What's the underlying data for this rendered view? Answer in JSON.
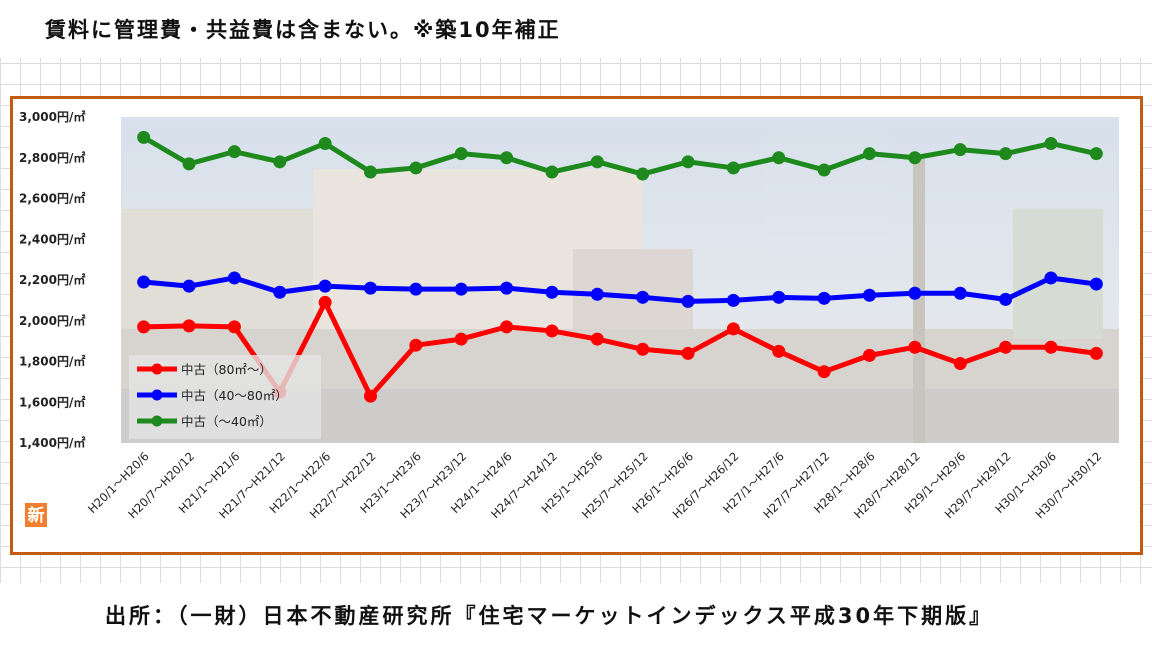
{
  "header_note": "賃料に管理費・共益費は含まない。※築10年補正",
  "source_note": "出所：（一財）日本不動産研究所『住宅マーケットインデックス平成30年下期版』",
  "badge": "新",
  "colors": {
    "frame": "#c55a11",
    "series_80": "#ff0000",
    "series_40_80": "#0000ff",
    "series_40": "#1e8a1e",
    "badge": "#f08030"
  },
  "chart_data": {
    "type": "line",
    "title": "",
    "xlabel": "",
    "ylabel": "",
    "ylim": [
      1400,
      3000
    ],
    "yticks": [
      1400,
      1600,
      1800,
      2000,
      2200,
      2400,
      2600,
      2800,
      3000
    ],
    "ytick_labels": [
      "1,400円/㎡",
      "1,600円/㎡",
      "1,800円/㎡",
      "2,000円/㎡",
      "2,200円/㎡",
      "2,400円/㎡",
      "2,600円/㎡",
      "2,800円/㎡",
      "3,000円/㎡"
    ],
    "categories": [
      "H20/1～H20/6",
      "H20/7～H20/12",
      "H21/1～H21/6",
      "H21/7～H21/12",
      "H22/1～H22/6",
      "H22/7～H22/12",
      "H23/1～H23/6",
      "H23/7～H23/12",
      "H24/1～H24/6",
      "H24/7～H24/12",
      "H25/1～H25/6",
      "H25/7～H25/12",
      "H26/1～H26/6",
      "H26/7～H26/12",
      "H27/1～H27/6",
      "H27/7～H27/12",
      "H28/1～H28/6",
      "H28/7～H28/12",
      "H29/1～H29/6",
      "H29/7～H29/12",
      "H30/1～H30/6",
      "H30/7～H30/12"
    ],
    "grid": false,
    "legend_position": "bottom-left",
    "series": [
      {
        "name": "中古（80㎡～）",
        "color": "#ff0000",
        "values": [
          1970,
          1975,
          1970,
          1650,
          2090,
          1630,
          1880,
          1910,
          1970,
          1950,
          1910,
          1860,
          1840,
          1960,
          1850,
          1750,
          1830,
          1870,
          1790,
          1870,
          1870,
          1840
        ]
      },
      {
        "name": "中古（40～80㎡）",
        "color": "#0000ff",
        "values": [
          2190,
          2170,
          2210,
          2140,
          2170,
          2160,
          2155,
          2155,
          2160,
          2140,
          2130,
          2115,
          2095,
          2100,
          2115,
          2110,
          2125,
          2135,
          2135,
          2105,
          2210,
          2180
        ]
      },
      {
        "name": "中古（～40㎡）",
        "color": "#1e8a1e",
        "values": [
          2900,
          2770,
          2830,
          2780,
          2870,
          2730,
          2750,
          2820,
          2800,
          2730,
          2780,
          2720,
          2780,
          2750,
          2800,
          2740,
          2820,
          2800,
          2840,
          2820,
          2870,
          2820
        ]
      }
    ]
  }
}
